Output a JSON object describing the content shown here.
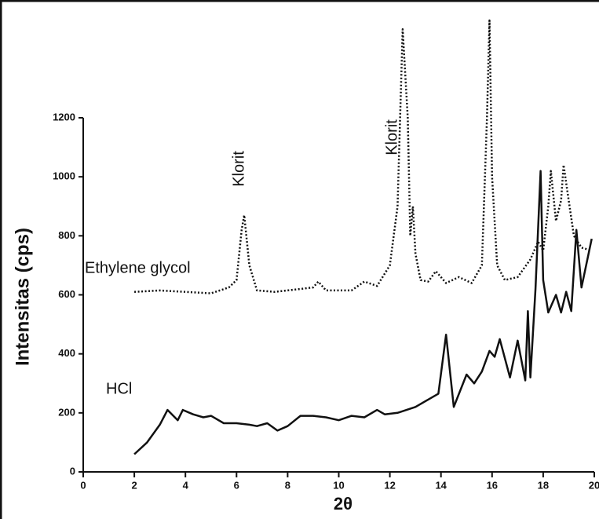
{
  "chart_data": {
    "type": "line",
    "x_label": "2θ",
    "y_label": "Intensitas (cps)",
    "xlim": [
      0,
      20
    ],
    "xticks": [
      0,
      2,
      4,
      6,
      8,
      10,
      12,
      14,
      16,
      18,
      20
    ],
    "ylim": [
      0,
      1200
    ],
    "yticks": [
      0,
      200,
      400,
      600,
      800,
      1000,
      1200
    ],
    "annotations": [
      "Klorit",
      "Klorit",
      "Ethylene glycol",
      "HCl"
    ],
    "series": [
      {
        "name": "Ethylene glycol",
        "color": "#111111",
        "line_style": "dotted",
        "x": [
          2.0,
          3.0,
          4.0,
          5.0,
          5.7,
          6.0,
          6.2,
          6.3,
          6.5,
          6.8,
          7.5,
          8.5,
          9.0,
          9.2,
          9.5,
          10.5,
          11.0,
          11.5,
          12.0,
          12.3,
          12.5,
          12.7,
          12.8,
          12.9,
          13.0,
          13.2,
          13.5,
          13.8,
          14.2,
          14.7,
          15.2,
          15.6,
          15.8,
          15.9,
          16.0,
          16.2,
          16.5,
          17.0,
          17.5,
          17.8,
          18.0,
          18.2,
          18.3,
          18.5,
          18.7,
          18.8,
          19.0,
          19.2,
          19.5,
          19.9
        ],
        "values": [
          610,
          615,
          610,
          605,
          625,
          650,
          820,
          870,
          700,
          615,
          610,
          620,
          625,
          645,
          615,
          615,
          645,
          630,
          700,
          900,
          1500,
          1200,
          800,
          900,
          740,
          650,
          645,
          680,
          640,
          660,
          640,
          700,
          1200,
          1530,
          1000,
          700,
          650,
          660,
          720,
          780,
          750,
          900,
          1020,
          850,
          920,
          1040,
          920,
          800,
          760,
          750
        ]
      },
      {
        "name": "HCl",
        "color": "#111111",
        "line_style": "solid",
        "x": [
          2.0,
          2.5,
          3.0,
          3.3,
          3.7,
          3.9,
          4.3,
          4.7,
          5.0,
          5.5,
          6.0,
          6.5,
          6.8,
          7.2,
          7.6,
          8.0,
          8.5,
          9.0,
          9.5,
          10.0,
          10.5,
          11.0,
          11.5,
          11.8,
          12.3,
          13.0,
          13.5,
          13.9,
          14.2,
          14.5,
          15.0,
          15.3,
          15.6,
          15.9,
          16.1,
          16.3,
          16.7,
          17.0,
          17.3,
          17.4,
          17.5,
          17.7,
          17.9,
          18.0,
          18.2,
          18.5,
          18.7,
          18.9,
          19.1,
          19.3,
          19.5,
          19.9
        ],
        "values": [
          60,
          100,
          160,
          210,
          175,
          210,
          195,
          185,
          190,
          165,
          165,
          160,
          155,
          165,
          140,
          155,
          190,
          190,
          185,
          175,
          190,
          185,
          210,
          195,
          200,
          220,
          245,
          265,
          465,
          220,
          330,
          300,
          340,
          410,
          390,
          450,
          320,
          445,
          310,
          545,
          320,
          620,
          1020,
          650,
          540,
          600,
          540,
          610,
          545,
          820,
          625,
          790
        ]
      }
    ]
  }
}
